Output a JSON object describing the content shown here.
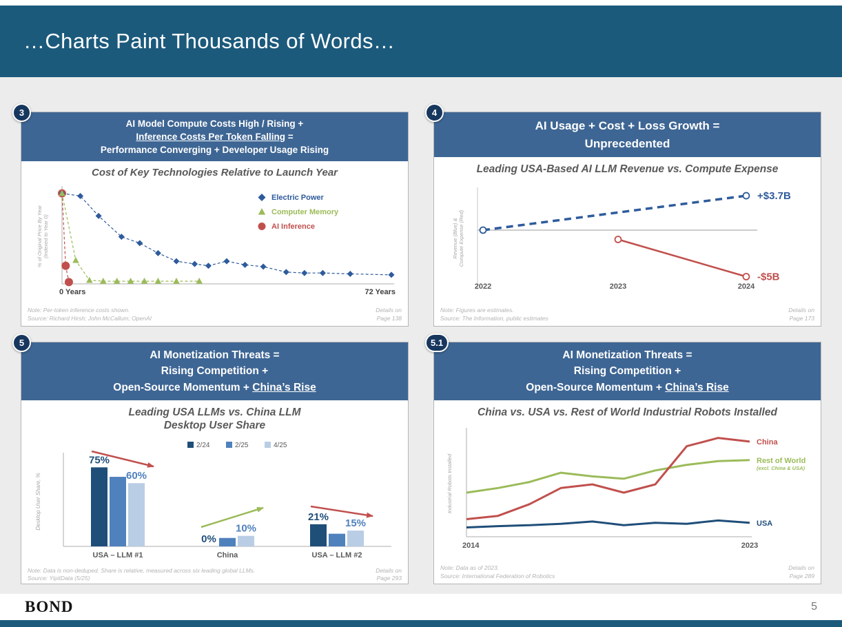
{
  "slide": {
    "title": "…Charts Paint Thousands of Words…"
  },
  "footer": {
    "logo": "BOND",
    "page_number": "5"
  },
  "colors": {
    "header_bar": "#1c5a7c",
    "panel_header": "#3e6694",
    "badge": "#17375e",
    "blue": "#2e5b9c",
    "green": "#9bbb59",
    "red": "#c0504d",
    "bar_dark_blue": "#1f4e79",
    "bar_mid_blue": "#4f81bd",
    "bar_light_blue": "#b9cde5"
  },
  "panels": [
    {
      "badge": "3",
      "header_lines": [
        [
          {
            "text": "AI Model Compute Costs High / Rising +",
            "underline": false
          }
        ],
        [
          {
            "text": "Inference Costs Per Token Falling",
            "underline": true
          },
          {
            "text": " =",
            "underline": false
          }
        ],
        [
          {
            "text": "Performance Converging + Developer Usage Rising",
            "underline": false
          }
        ]
      ],
      "chart_title": "Cost of Key Technologies Relative to Launch Year",
      "note": "Note: Per-token inference costs shown.",
      "source": "Source: Richard Hirsh; John McCallum; OpenAI",
      "details": "Details on\nPage 138"
    },
    {
      "badge": "4",
      "header_lines": [
        [
          {
            "text": "AI Usage + Cost + Loss Growth =",
            "underline": false
          }
        ],
        [
          {
            "text": "Unprecedented",
            "underline": false
          }
        ]
      ],
      "chart_title": "Leading USA-Based AI LLM Revenue vs. Compute Expense",
      "note": "Note: Figures are estimates.",
      "source": "Source: The Information, public estimates",
      "details": "Details on\nPage 173"
    },
    {
      "badge": "5",
      "header_lines": [
        [
          {
            "text": "AI Monetization Threats =",
            "underline": false
          }
        ],
        [
          {
            "text": "Rising Competition +",
            "underline": false
          }
        ],
        [
          {
            "text": "Open-Source Momentum + ",
            "underline": false
          },
          {
            "text": "China’s Rise",
            "underline": true
          }
        ]
      ],
      "chart_title": "Leading USA LLMs vs. China LLM\nDesktop User Share",
      "note": "Note: Data is non-deduped. Share is relative, measured across six leading global LLMs.",
      "source": "Source: YipitData (5/25)",
      "details": "Details on\nPage 293"
    },
    {
      "badge": "5.1",
      "header_lines": [
        [
          {
            "text": "AI Monetization Threats =",
            "underline": false
          }
        ],
        [
          {
            "text": "Rising Competition +",
            "underline": false
          }
        ],
        [
          {
            "text": "Open-Source Momentum + ",
            "underline": false
          },
          {
            "text": "China’s Rise",
            "underline": true
          }
        ]
      ],
      "chart_title": "China vs. USA vs. Rest of World Industrial Robots Installed",
      "note": "Note: Data as of 2023.",
      "source": "Source: International Federation of Robotics",
      "details": "Details on\nPage 289"
    }
  ],
  "chart_data": [
    {
      "type": "scatter",
      "title": "Cost of Key Technologies Relative to Launch Year",
      "ylabel": "% of Original Price By Year\n(Indexed to Year 0)",
      "xlabel_left": "0 Years",
      "xlabel_right": "72 Years",
      "xlim": [
        0,
        72
      ],
      "ylim": [
        0,
        105
      ],
      "legend_position": "top-right",
      "values_estimated": true,
      "series": [
        {
          "name": "Electric Power",
          "color": "#2e5b9c",
          "marker": "diamond",
          "marker_size": 4.5,
          "points": [
            [
              0,
              100
            ],
            [
              4,
              97
            ],
            [
              8,
              75
            ],
            [
              13,
              52
            ],
            [
              17,
              45
            ],
            [
              21,
              34
            ],
            [
              25,
              25
            ],
            [
              29,
              22
            ],
            [
              32,
              20
            ],
            [
              36,
              25
            ],
            [
              40,
              21
            ],
            [
              44,
              19
            ],
            [
              49,
              13
            ],
            [
              53,
              12
            ],
            [
              57,
              12
            ],
            [
              63,
              11
            ],
            [
              72,
              10
            ]
          ]
        },
        {
          "name": "Computer Memory",
          "color": "#9bbb59",
          "marker": "triangle",
          "marker_size": 5,
          "points": [
            [
              0,
              100
            ],
            [
              3,
              26
            ],
            [
              6,
              4
            ],
            [
              9,
              3
            ],
            [
              12,
              3
            ],
            [
              15,
              3
            ],
            [
              18,
              3
            ],
            [
              21,
              3
            ],
            [
              25,
              3
            ],
            [
              30,
              3
            ]
          ]
        },
        {
          "name": "AI Inference",
          "color": "#c0504d",
          "marker": "circle",
          "marker_size": 6,
          "points": [
            [
              0,
              100
            ],
            [
              0.8,
              20
            ],
            [
              1.5,
              2
            ]
          ]
        }
      ]
    },
    {
      "type": "line",
      "title": "Leading USA-Based AI LLM Revenue vs. Compute Expense",
      "ylabel": "Revenue (Blue) &\nCompute Expense (Red)",
      "x_ticks": [
        "2022",
        "2023",
        "2024"
      ],
      "ylim": [
        -5.5,
        4.5
      ],
      "baseline": 0,
      "units": "US$B",
      "values_estimated": true,
      "series": [
        {
          "name": "Revenue",
          "color": "#2e5b9c",
          "dashed": true,
          "end_label": "+$3.7B",
          "points": [
            [
              "2022",
              0
            ],
            [
              "2024",
              3.7
            ]
          ]
        },
        {
          "name": "Compute Expense",
          "color": "#c0504d",
          "dashed": false,
          "end_label": "-$5B",
          "points": [
            [
              "2023",
              -1
            ],
            [
              "2024",
              -5
            ]
          ]
        }
      ]
    },
    {
      "type": "bar",
      "title": "Leading USA LLMs vs. China LLM Desktop User Share",
      "ylabel": "Desktop User Share, %",
      "categories": [
        "USA – LLM #1",
        "China",
        "USA – LLM #2"
      ],
      "ylim": [
        0,
        85
      ],
      "legend_position": "top-center",
      "series": [
        {
          "name": "2/24",
          "color": "#1f4e79",
          "values": [
            75,
            0,
            21
          ]
        },
        {
          "name": "2/25",
          "color": "#4f81bd",
          "values": [
            66,
            8,
            12
          ]
        },
        {
          "name": "4/25",
          "color": "#b9cde5",
          "values": [
            60,
            10,
            15
          ]
        }
      ],
      "value_labels": [
        {
          "group": 0,
          "series": 0,
          "text": "75%",
          "color": "#1f4e79"
        },
        {
          "group": 0,
          "series": 2,
          "text": "60%",
          "color": "#4f81bd"
        },
        {
          "group": 1,
          "series": 0,
          "text": "0%",
          "color": "#1f4e79"
        },
        {
          "group": 1,
          "series": 2,
          "text": "10%",
          "color": "#4f81bd"
        },
        {
          "group": 2,
          "series": 0,
          "text": "21%",
          "color": "#1f4e79"
        },
        {
          "group": 2,
          "series": 2,
          "text": "15%",
          "color": "#4f81bd"
        }
      ],
      "trend_arrows": [
        {
          "group": 0,
          "direction": "down",
          "color": "#c0504d"
        },
        {
          "group": 1,
          "direction": "up",
          "color": "#9bbb59"
        },
        {
          "group": 2,
          "direction": "down",
          "color": "#c0504d"
        }
      ]
    },
    {
      "type": "line",
      "title": "China vs. USA vs. Rest of World Industrial Robots Installed",
      "ylabel": "Industrial Robots Installed",
      "x": [
        2014,
        2015,
        2016,
        2017,
        2018,
        2019,
        2020,
        2021,
        2022,
        2023
      ],
      "x_ticks_shown": [
        "2014",
        "2023"
      ],
      "values_estimated": true,
      "series": [
        {
          "name": "China",
          "color": "#c0504d",
          "values": [
            53,
            63,
            98,
            147,
            158,
            133,
            158,
            273,
            298,
            287
          ]
        },
        {
          "name": "Rest of World",
          "sublabel": "(excl. China & USA)",
          "color": "#9bbb59",
          "values": [
            133,
            147,
            165,
            193,
            182,
            175,
            200,
            217,
            228,
            231
          ]
        },
        {
          "name": "USA",
          "color": "#1f4e79",
          "values": [
            28,
            32,
            35,
            39,
            46,
            35,
            42,
            39,
            49,
            42
          ]
        }
      ]
    }
  ]
}
